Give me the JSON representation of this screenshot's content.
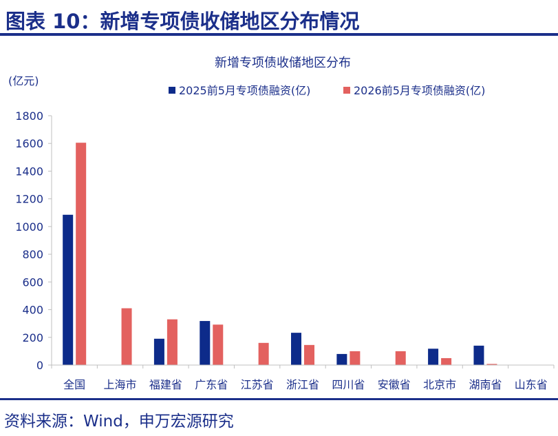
{
  "figure_title": "图表 10：新增专项债收储地区分布情况",
  "source": "资料来源：Wind，申万宏源研究",
  "colors": {
    "primary": "#1b2f8a",
    "series_2025": "#0d2b8a",
    "series_2026": "#e3615f",
    "axis": "#bfbfbf"
  },
  "chart_data": {
    "type": "bar",
    "title": "新增专项债收储地区分布",
    "ylabel": "(亿元)",
    "xlabel": "",
    "ylim": [
      0,
      1800
    ],
    "yticks": [
      0,
      200,
      400,
      600,
      800,
      1000,
      1200,
      1400,
      1600,
      1800
    ],
    "grid": false,
    "legend_position": "top",
    "categories": [
      "全国",
      "上海市",
      "福建省",
      "广东省",
      "江苏省",
      "浙江省",
      "四川省",
      "安徽省",
      "北京市",
      "湖南省",
      "山东省"
    ],
    "series": [
      {
        "name": "2025前5月专项债融资(亿)",
        "color": "#0d2b8a",
        "values": [
          1085,
          0,
          190,
          318,
          0,
          233,
          80,
          0,
          118,
          140,
          0
        ]
      },
      {
        "name": "2026前5月专项债融资(亿)",
        "color": "#e3615f",
        "values": [
          1605,
          410,
          330,
          292,
          160,
          145,
          100,
          100,
          50,
          8,
          0
        ]
      }
    ]
  }
}
